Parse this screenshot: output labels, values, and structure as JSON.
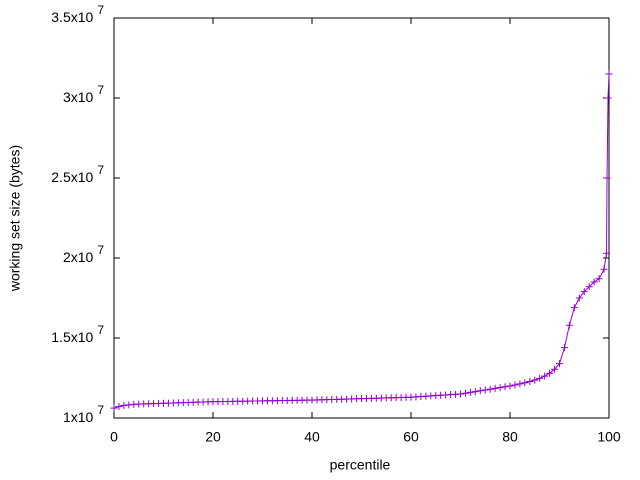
{
  "chart_data": {
    "type": "line",
    "x_label": "percentile",
    "y_label": "working set size (bytes)",
    "color": "#9400d3",
    "marker": "+",
    "xlim": [
      0,
      100
    ],
    "xticks": [
      0,
      20,
      40,
      60,
      80,
      100
    ],
    "ylim": [
      10000000,
      35000000
    ],
    "yticks": [
      {
        "value": 10000000,
        "label": "1x10^7"
      },
      {
        "value": 15000000,
        "label": "1.5x10^7"
      },
      {
        "value": 20000000,
        "label": "2x10^7"
      },
      {
        "value": 25000000,
        "label": "2.5x10^7"
      },
      {
        "value": 30000000,
        "label": "3x10^7"
      },
      {
        "value": 35000000,
        "label": "3.5x10^7"
      }
    ],
    "x": [
      0,
      1,
      2,
      3,
      4,
      5,
      6,
      7,
      8,
      9,
      10,
      11,
      12,
      13,
      14,
      15,
      16,
      17,
      18,
      19,
      20,
      21,
      22,
      23,
      24,
      25,
      26,
      27,
      28,
      29,
      30,
      31,
      32,
      33,
      34,
      35,
      36,
      37,
      38,
      39,
      40,
      41,
      42,
      43,
      44,
      45,
      46,
      47,
      48,
      49,
      50,
      51,
      52,
      53,
      54,
      55,
      56,
      57,
      58,
      59,
      60,
      61,
      62,
      63,
      64,
      65,
      66,
      67,
      68,
      69,
      70,
      71,
      72,
      73,
      74,
      75,
      76,
      77,
      78,
      79,
      80,
      81,
      82,
      83,
      84,
      85,
      86,
      87,
      88,
      89,
      90,
      91,
      92,
      93,
      94,
      95,
      96,
      97,
      98,
      99,
      99.5,
      99.6,
      99.8,
      100
    ],
    "values": [
      10620000,
      10720000,
      10780000,
      10820000,
      10850000,
      10870000,
      10880000,
      10890000,
      10900000,
      10910000,
      10920000,
      10930000,
      10940000,
      10950000,
      10960000,
      10970000,
      10980000,
      10990000,
      11000000,
      11010000,
      11020000,
      11025000,
      11030000,
      11035000,
      11040000,
      11045000,
      11050000,
      11055000,
      11060000,
      11065000,
      11070000,
      11075000,
      11080000,
      11085000,
      11090000,
      11095000,
      11100000,
      11105000,
      11110000,
      11115000,
      11120000,
      11129000,
      11138000,
      11147000,
      11156000,
      11165000,
      11174000,
      11183000,
      11192000,
      11201000,
      11210000,
      11219000,
      11228000,
      11237000,
      11246000,
      11255000,
      11264000,
      11273000,
      11282000,
      11291000,
      11300000,
      11320000,
      11340000,
      11360000,
      11380000,
      11400000,
      11420000,
      11440000,
      11460000,
      11480000,
      11500000,
      11550000,
      11600000,
      11650000,
      11700000,
      11750000,
      11800000,
      11850000,
      11900000,
      11950000,
      12000000,
      12060000,
      12130000,
      12200000,
      12280000,
      12370000,
      12480000,
      12620000,
      12800000,
      13050000,
      13400000,
      14400000,
      15800000,
      16900000,
      17500000,
      17900000,
      18200000,
      18500000,
      18700000,
      19300000,
      20300000,
      25000000,
      30000000,
      31500000
    ]
  }
}
